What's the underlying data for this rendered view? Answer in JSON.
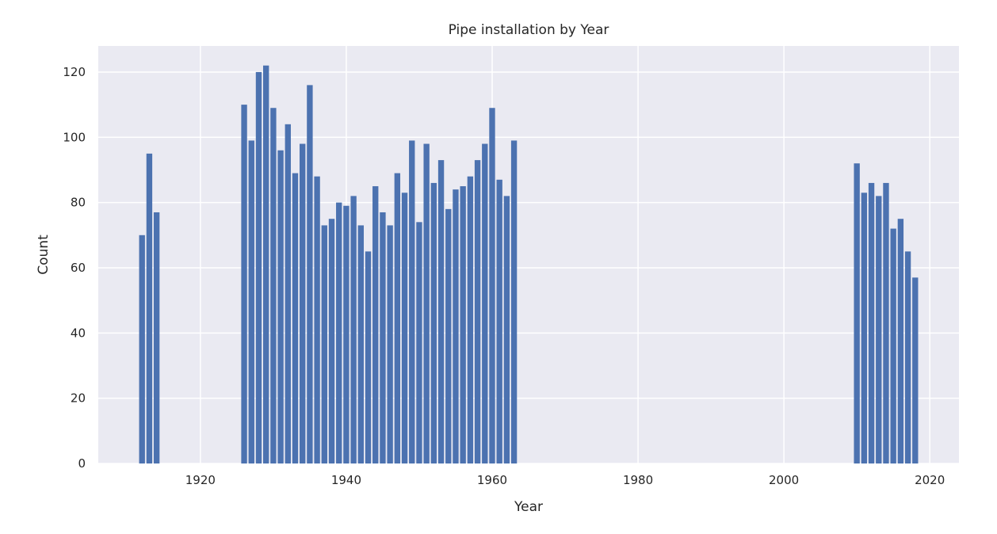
{
  "chart_data": {
    "type": "bar",
    "title": "Pipe installation by Year",
    "xlabel": "Year",
    "ylabel": "Count",
    "xlim": [
      1906,
      2024
    ],
    "ylim": [
      0,
      128
    ],
    "xticks": [
      1920,
      1940,
      1960,
      1980,
      2000,
      2020
    ],
    "yticks": [
      0,
      20,
      40,
      60,
      80,
      100,
      120
    ],
    "grid": true,
    "bar_color": "#4c72b0",
    "background": "#eaeaf2",
    "bar_width": 0.8,
    "x": [
      1912,
      1913,
      1914,
      1926,
      1927,
      1928,
      1929,
      1930,
      1931,
      1932,
      1933,
      1934,
      1935,
      1936,
      1937,
      1938,
      1939,
      1940,
      1941,
      1942,
      1943,
      1944,
      1945,
      1946,
      1947,
      1948,
      1949,
      1950,
      1951,
      1952,
      1953,
      1954,
      1955,
      1956,
      1957,
      1958,
      1959,
      1960,
      1961,
      1962,
      1963,
      2010,
      2011,
      2012,
      2013,
      2014,
      2015,
      2016,
      2017,
      2018
    ],
    "values": [
      70,
      95,
      77,
      110,
      99,
      120,
      122,
      109,
      96,
      104,
      89,
      98,
      116,
      88,
      73,
      75,
      80,
      79,
      82,
      73,
      65,
      85,
      77,
      73,
      89,
      83,
      99,
      74,
      98,
      86,
      93,
      78,
      84,
      85,
      88,
      93,
      98,
      109,
      87,
      82,
      99,
      92,
      83,
      86,
      82,
      86,
      72,
      75,
      65,
      57
    ]
  }
}
